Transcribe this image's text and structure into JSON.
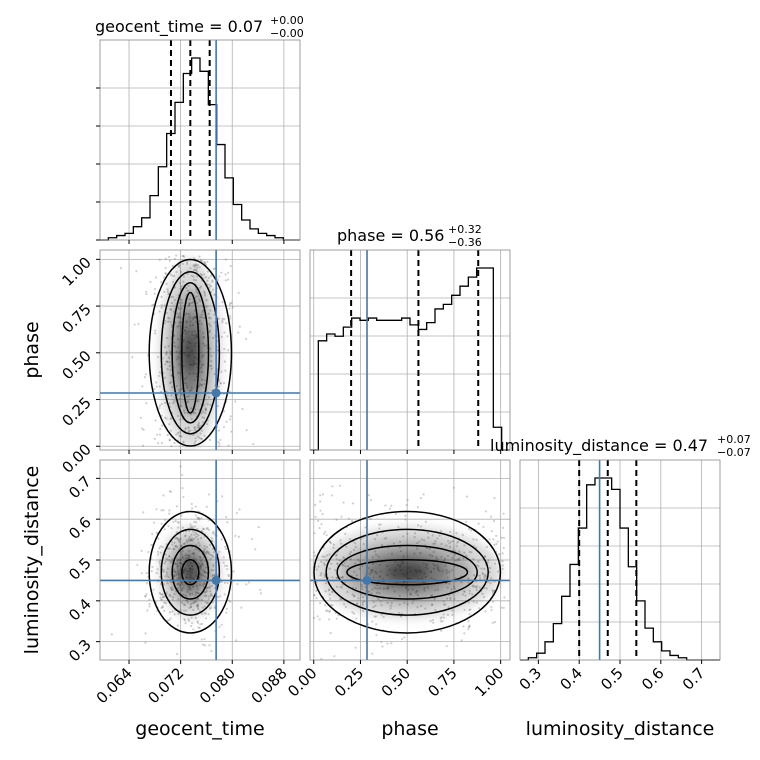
{
  "params": [
    "geocent_time",
    "phase",
    "luminosity_distance"
  ],
  "titles": {
    "geocent_time": {
      "label": "geocent_time = 0.07",
      "plus": "+0.00",
      "minus": "−0.00"
    },
    "phase": {
      "label": "phase = 0.56",
      "plus": "+0.32",
      "minus": "−0.36"
    },
    "luminosity_distance": {
      "label": "luminosity_distance = 0.47",
      "plus": "+0.07",
      "minus": "−0.07"
    }
  },
  "axis_labels": {
    "geocent_time": "geocent_time",
    "phase": "phase",
    "luminosity_distance": "luminosity_distance"
  },
  "ticks": {
    "geocent_time": [
      "0.064",
      "0.072",
      "0.080",
      "0.088"
    ],
    "phase": [
      "0.00",
      "0.25",
      "0.50",
      "0.75",
      "1.00"
    ],
    "luminosity_distance": [
      "0.3",
      "0.4",
      "0.5",
      "0.6",
      "0.7"
    ]
  },
  "colors": {
    "truth": "#4477aa",
    "hist": "#000000",
    "grid": "#b0b0b0",
    "density": "#000000"
  },
  "chart_data": {
    "type": "corner",
    "parameters": [
      "geocent_time",
      "phase",
      "luminosity_distance"
    ],
    "ranges": {
      "geocent_time": [
        0.0595,
        0.0905
      ],
      "phase": [
        -0.02,
        1.05
      ],
      "luminosity_distance": [
        0.255,
        0.745
      ]
    },
    "truths": {
      "geocent_time": 0.0775,
      "phase": 0.285,
      "luminosity_distance": 0.45
    },
    "quantiles": {
      "geocent_time": [
        0.0705,
        0.0735,
        0.0765
      ],
      "phase": [
        0.2,
        0.56,
        0.88
      ],
      "luminosity_distance": [
        0.4,
        0.47,
        0.54
      ]
    },
    "marginals": {
      "geocent_time": {
        "bins": [
          0.0595,
          0.0905
        ],
        "counts": [
          0,
          1,
          2,
          3,
          6,
          10,
          20,
          33,
          48,
          62,
          75,
          82,
          76,
          61,
          43,
          28,
          16,
          9,
          5,
          3,
          2,
          1,
          0,
          0
        ]
      },
      "phase": {
        "bins": [
          -0.02,
          1.05
        ],
        "counts": [
          0,
          48,
          51,
          50,
          54,
          58,
          57,
          58,
          57,
          57,
          57,
          58,
          55,
          53,
          56,
          62,
          64,
          68,
          72,
          76,
          80,
          80,
          10,
          0
        ]
      },
      "luminosity_distance": {
        "bins": [
          0.255,
          0.745
        ],
        "counts": [
          0,
          1,
          3,
          8,
          16,
          28,
          42,
          58,
          77,
          80,
          80,
          75,
          58,
          41,
          26,
          14,
          8,
          4,
          2,
          1,
          0,
          0,
          0,
          0
        ]
      }
    },
    "pairs": [
      {
        "x": "geocent_time",
        "y": "phase"
      },
      {
        "x": "geocent_time",
        "y": "luminosity_distance"
      },
      {
        "x": "phase",
        "y": "luminosity_distance"
      }
    ],
    "grid": true
  }
}
